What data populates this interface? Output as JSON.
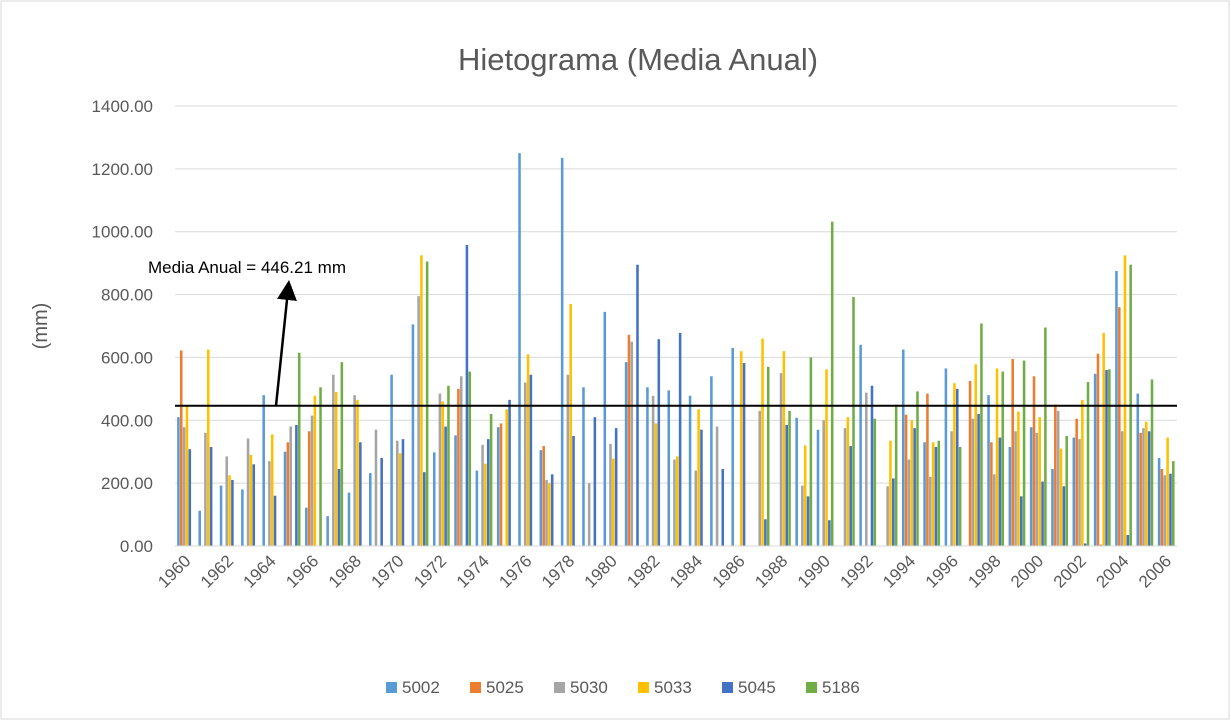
{
  "chart_data": {
    "type": "bar",
    "title": "Hietograma (Media Anual)",
    "y_label": "(mm)",
    "annotation": "Media Anual = 446.21 mm",
    "mean_line": 446.21,
    "categories": [
      "1960",
      null,
      "1962",
      null,
      "1964",
      null,
      "1966",
      null,
      "1968",
      null,
      "1970",
      null,
      "1972",
      null,
      "1974",
      null,
      "1976",
      null,
      "1978",
      null,
      "1980",
      null,
      "1982",
      null,
      "1984",
      null,
      "1986",
      null,
      "1988",
      null,
      "1990",
      null,
      "1992",
      null,
      "1994",
      null,
      "1996",
      null,
      "1998",
      null,
      "2000",
      null,
      "2002",
      null,
      "2004",
      null,
      "2006"
    ],
    "series": [
      {
        "name": "5002",
        "color": "#5b9bd5",
        "values": [
          410,
          112,
          192,
          180,
          480,
          300,
          122,
          95,
          170,
          232,
          545,
          705,
          298,
          352,
          240,
          378,
          1250,
          305,
          1235,
          505,
          745,
          585,
          505,
          495,
          478,
          540,
          630,
          null,
          null,
          408,
          370,
          null,
          640,
          null,
          625,
          330,
          565,
          null,
          480,
          315,
          378,
          245,
          345,
          548,
          875,
          485,
          280
        ]
      },
      {
        "name": "5025",
        "color": "#ed7d31",
        "values": [
          622,
          null,
          null,
          null,
          null,
          330,
          365,
          null,
          null,
          null,
          null,
          null,
          null,
          500,
          null,
          390,
          null,
          318,
          null,
          null,
          null,
          672,
          null,
          null,
          null,
          null,
          null,
          null,
          null,
          null,
          null,
          null,
          null,
          null,
          418,
          485,
          null,
          525,
          330,
          595,
          540,
          450,
          405,
          612,
          760,
          360,
          245
        ]
      },
      {
        "name": "5030",
        "color": "#a5a5a5",
        "values": [
          378,
          360,
          285,
          342,
          270,
          380,
          415,
          545,
          480,
          370,
          335,
          795,
          485,
          540,
          322,
          null,
          520,
          210,
          545,
          200,
          325,
          650,
          478,
          275,
          240,
          380,
          null,
          430,
          550,
          192,
          400,
          375,
          488,
          190,
          275,
          220,
          365,
          405,
          228,
          365,
          360,
          430,
          340,
          5,
          365,
          375,
          225
        ]
      },
      {
        "name": "5033",
        "color": "#ffc000",
        "values": [
          445,
          625,
          225,
          290,
          355,
          null,
          478,
          490,
          465,
          null,
          295,
          925,
          460,
          null,
          262,
          435,
          610,
          200,
          770,
          null,
          278,
          null,
          390,
          285,
          435,
          null,
          620,
          660,
          620,
          320,
          562,
          410,
          null,
          335,
          400,
          330,
          518,
          578,
          565,
          428,
          410,
          310,
          465,
          678,
          925,
          395,
          345
        ]
      },
      {
        "name": "5045",
        "color": "#4472c4",
        "values": [
          308,
          315,
          210,
          260,
          160,
          385,
          null,
          245,
          330,
          280,
          340,
          235,
          380,
          958,
          340,
          465,
          545,
          228,
          350,
          410,
          375,
          895,
          658,
          678,
          370,
          245,
          582,
          85,
          385,
          158,
          82,
          318,
          510,
          215,
          375,
          315,
          500,
          420,
          345,
          158,
          205,
          190,
          8,
          560,
          35,
          365,
          230
        ]
      },
      {
        "name": "5186",
        "color": "#70ad47",
        "values": [
          null,
          null,
          null,
          null,
          null,
          615,
          505,
          585,
          null,
          null,
          null,
          905,
          510,
          555,
          420,
          null,
          null,
          null,
          null,
          null,
          null,
          null,
          null,
          null,
          null,
          null,
          null,
          570,
          430,
          600,
          1032,
          792,
          405,
          450,
          492,
          335,
          315,
          708,
          555,
          590,
          695,
          350,
          522,
          562,
          895,
          530,
          270
        ]
      }
    ],
    "ylim": [
      0,
      1400
    ],
    "yticks": [
      {
        "value": 0,
        "label": "0.00"
      },
      {
        "value": 200,
        "label": "200.00"
      },
      {
        "value": 400,
        "label": "400.00"
      },
      {
        "value": 600,
        "label": "600.00"
      },
      {
        "value": 800,
        "label": "800.00"
      },
      {
        "value": 1000,
        "label": "1000.00"
      },
      {
        "value": 1200,
        "label": "1200.00"
      },
      {
        "value": 1400,
        "label": "1400.00"
      }
    ],
    "grid": true,
    "legend": "bottom"
  }
}
